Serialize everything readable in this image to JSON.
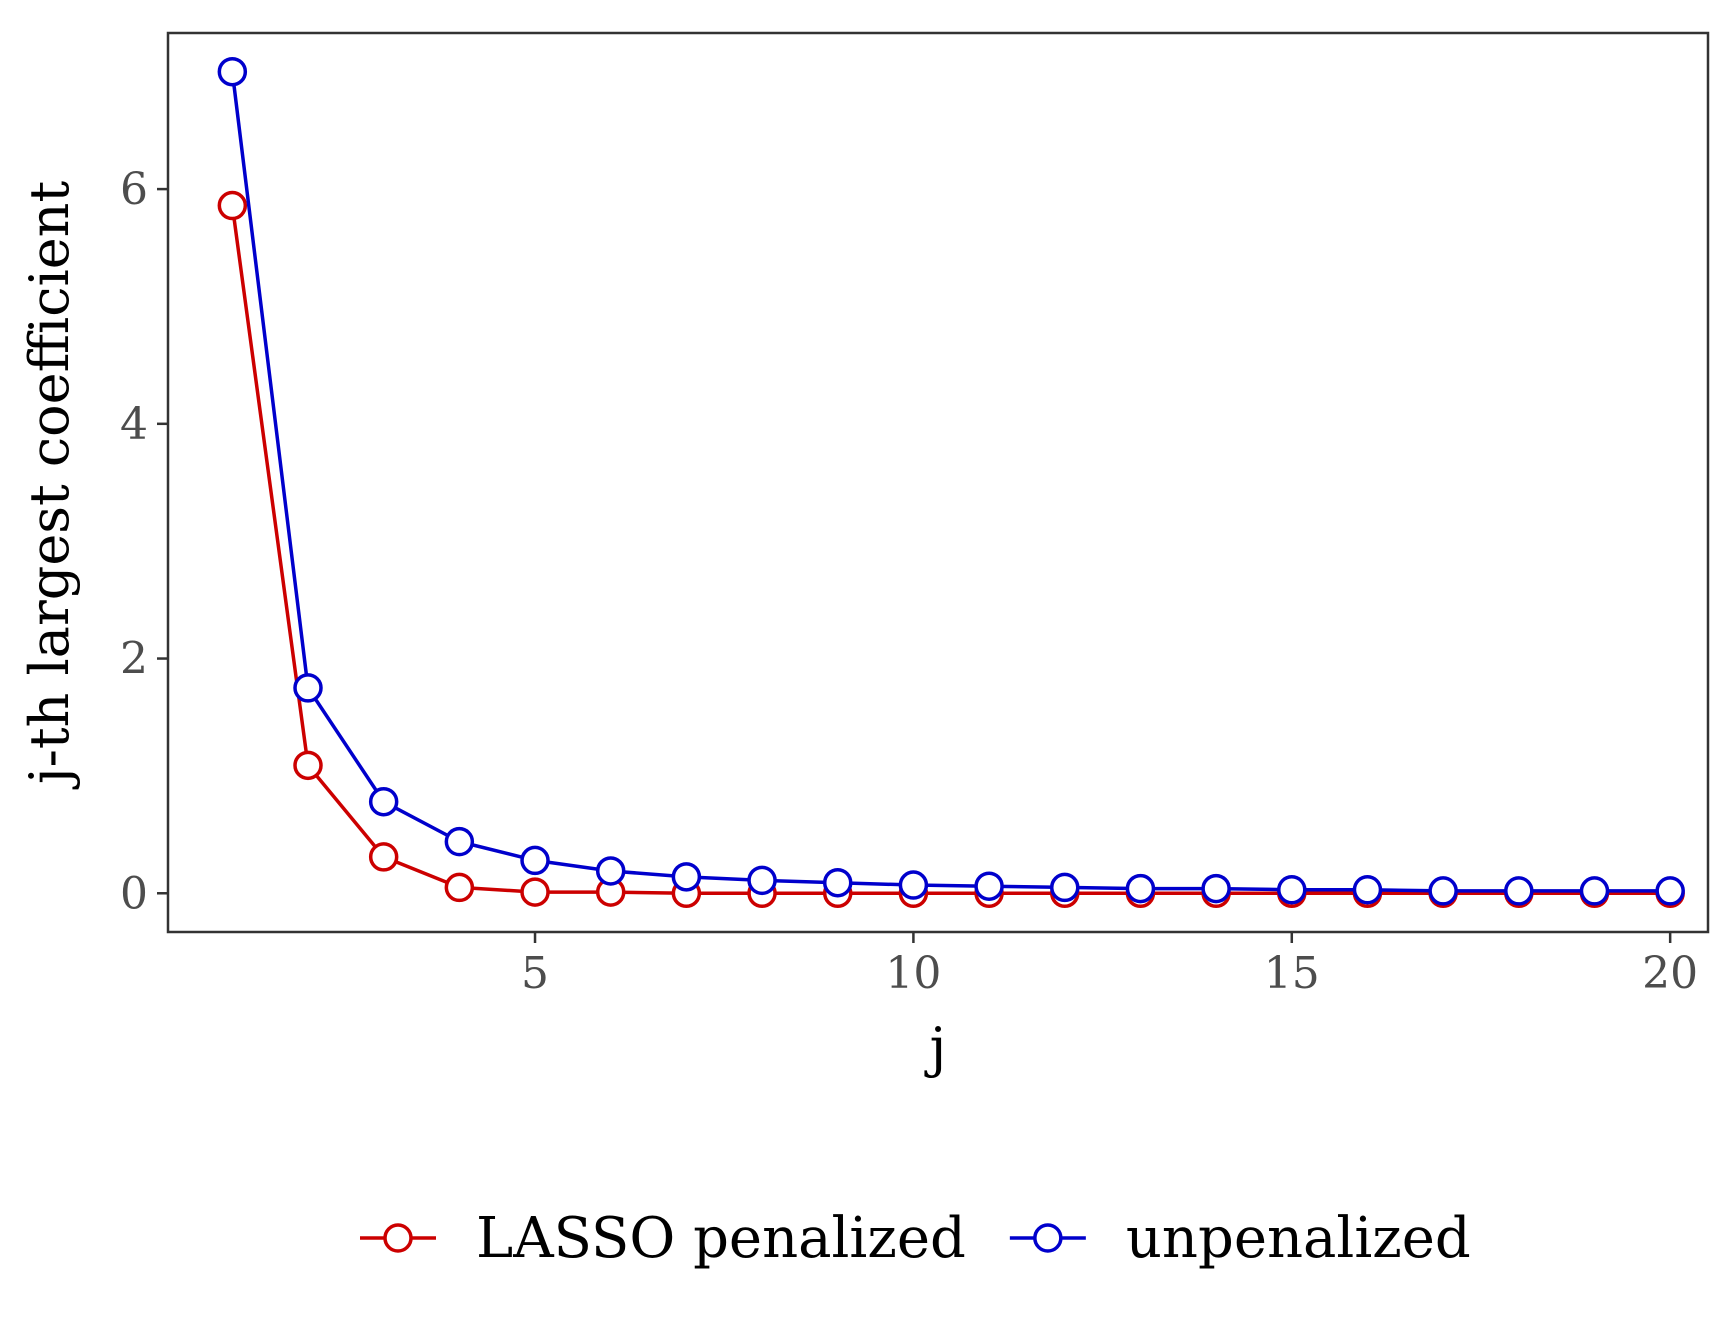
{
  "chart_data": {
    "type": "line",
    "xlabel": "j",
    "ylabel": "j-th largest coefficient",
    "x_ticks": [
      5,
      10,
      15,
      20
    ],
    "y_ticks": [
      0,
      2,
      4,
      6
    ],
    "x_tick_labels": [
      "5",
      "10",
      "15",
      "20"
    ],
    "y_tick_labels": [
      "0",
      "2",
      "4",
      "6"
    ],
    "xlim": [
      0.15,
      20.5
    ],
    "ylim": [
      -0.33,
      7.33
    ],
    "grid": false,
    "legend_position": "bottom",
    "x": [
      1,
      2,
      3,
      4,
      5,
      6,
      7,
      8,
      9,
      10,
      11,
      12,
      13,
      14,
      15,
      16,
      17,
      18,
      19,
      20
    ],
    "series": [
      {
        "name": "LASSO penalized",
        "color": "#cc0000",
        "marker": "open-circle",
        "values": [
          5.86,
          1.09,
          0.31,
          0.05,
          0.01,
          0.01,
          0.0,
          0.0,
          0.0,
          0.0,
          0.0,
          0.0,
          0.0,
          0.0,
          0.0,
          0.0,
          0.0,
          0.0,
          0.0,
          0.0
        ]
      },
      {
        "name": "unpenalized",
        "color": "#0000cc",
        "marker": "open-circle",
        "values": [
          7.0,
          1.75,
          0.78,
          0.44,
          0.28,
          0.19,
          0.14,
          0.11,
          0.09,
          0.07,
          0.06,
          0.05,
          0.04,
          0.04,
          0.03,
          0.03,
          0.02,
          0.02,
          0.02,
          0.02
        ]
      }
    ]
  }
}
